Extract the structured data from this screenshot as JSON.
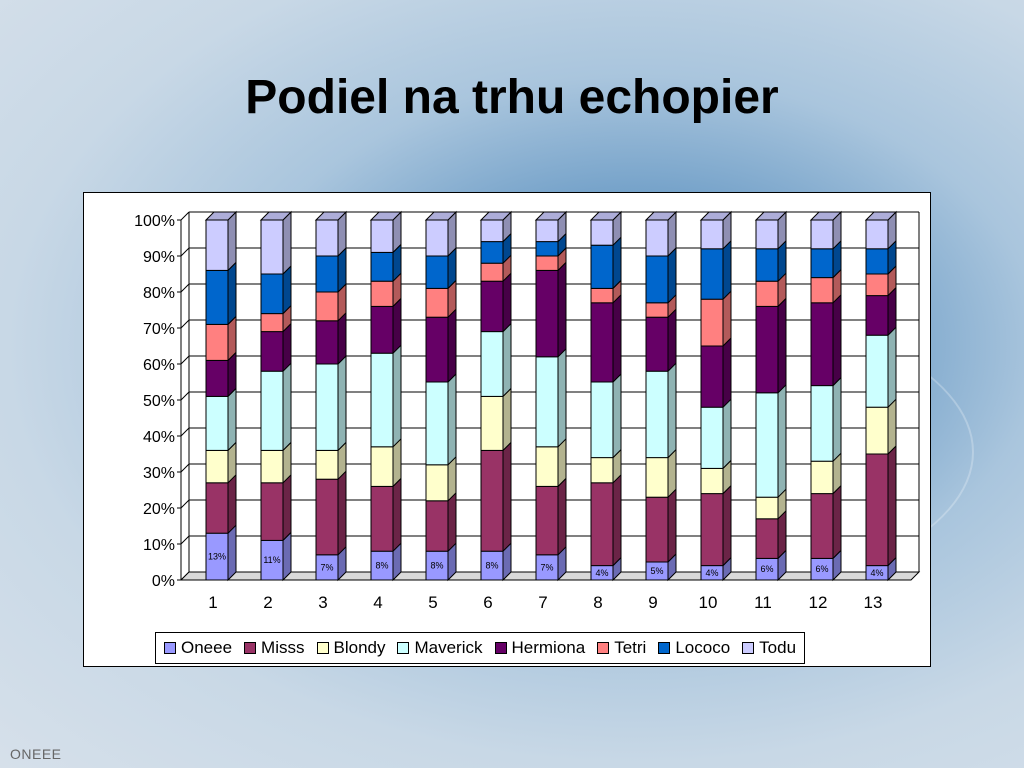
{
  "slide": {
    "title": "Podiel na trhu echopier",
    "footer": "ONEEE"
  },
  "colors": {
    "Oneee": "#9999ff",
    "Misss": "#993366",
    "Blondy": "#ffffcc",
    "Maverick": "#ccffff",
    "Hermiona": "#660066",
    "Tetri": "#ff8080",
    "Lococo": "#0066cc",
    "Todu": "#ccccff"
  },
  "chart_data": {
    "type": "bar",
    "stacked": "percent",
    "title": "",
    "xlabel": "",
    "ylabel": "",
    "categories": [
      "1",
      "2",
      "3",
      "4",
      "5",
      "6",
      "7",
      "8",
      "9",
      "10",
      "11",
      "12",
      "13"
    ],
    "ylim": [
      0,
      100
    ],
    "y_ticks": [
      "0%",
      "10%",
      "20%",
      "30%",
      "40%",
      "50%",
      "60%",
      "70%",
      "80%",
      "90%",
      "100%"
    ],
    "legend_position": "bottom",
    "grid": true,
    "series": [
      {
        "name": "Oneee",
        "values": [
          13,
          11,
          7,
          8,
          8,
          8,
          7,
          4,
          5,
          4,
          6,
          6,
          4
        ],
        "labels": [
          "13%",
          "11%",
          "7%",
          "8%",
          "8%",
          "8%",
          "7%",
          "4%",
          "5%",
          "4%",
          "6%",
          "6%",
          "4%"
        ]
      },
      {
        "name": "Misss",
        "values": [
          14,
          16,
          21,
          18,
          14,
          28,
          19,
          23,
          18,
          20,
          11,
          18,
          31
        ]
      },
      {
        "name": "Blondy",
        "values": [
          9,
          9,
          8,
          11,
          10,
          15,
          11,
          7,
          11,
          7,
          6,
          9,
          13
        ]
      },
      {
        "name": "Maverick",
        "values": [
          15,
          22,
          24,
          26,
          23,
          18,
          25,
          21,
          24,
          17,
          29,
          21,
          20
        ]
      },
      {
        "name": "Hermiona",
        "values": [
          10,
          11,
          12,
          13,
          18,
          14,
          24,
          22,
          15,
          17,
          24,
          23,
          11
        ]
      },
      {
        "name": "Tetri",
        "values": [
          10,
          5,
          8,
          7,
          8,
          5,
          4,
          4,
          4,
          13,
          7,
          7,
          6
        ]
      },
      {
        "name": "Lococo",
        "values": [
          15,
          11,
          10,
          8,
          9,
          6,
          4,
          12,
          13,
          14,
          9,
          8,
          7
        ]
      },
      {
        "name": "Todu",
        "values": [
          14,
          15,
          10,
          9,
          10,
          6,
          6,
          7,
          10,
          8,
          8,
          8,
          8
        ]
      }
    ]
  }
}
